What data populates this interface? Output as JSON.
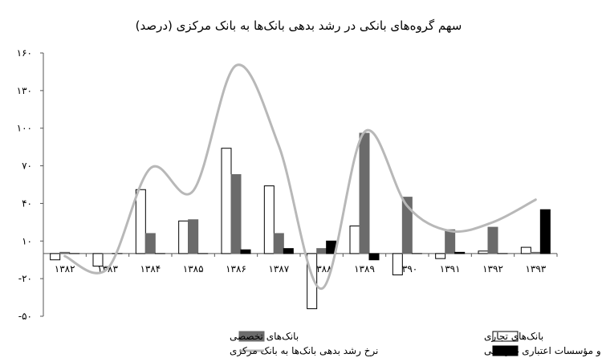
{
  "chart_data": {
    "type": "bar",
    "title": "سهم گروه‌های بانکی در رشد بدهی بانک‌ها به بانک مرکزی (درصد)",
    "categories": [
      "۱۳۸۲",
      "۱۳۸۳",
      "۱۳۸۴",
      "۱۳۸۵",
      "۱۳۸۶",
      "۱۳۸۷",
      "۱۳۸۸",
      "۱۳۸۹",
      "۱۳۹۰",
      "۱۳۹۱",
      "۱۳۹۲",
      "۱۳۹۳"
    ],
    "y_tick_labels": [
      "۱۶۰",
      "۱۳۰",
      "۱۰۰",
      "۷۰",
      "۴۰",
      "۱۰",
      "-۲۰",
      "-۵۰"
    ],
    "y_tick_values": [
      160,
      130,
      100,
      70,
      40,
      10,
      -20,
      -50
    ],
    "ylim": [
      -50,
      160
    ],
    "series": [
      {
        "name": "بانک‌های تجاری",
        "kind": "bar",
        "color": "#ffffff",
        "values": [
          -5,
          -10,
          51,
          26,
          84,
          54,
          -44,
          22,
          -17,
          -4,
          2,
          5
        ]
      },
      {
        "name": "بانک‌های تخصصی",
        "kind": "bar",
        "color": "#6b6b6b",
        "values": [
          1,
          0,
          16,
          27,
          63,
          16,
          4,
          96,
          45,
          19,
          21,
          1
        ]
      },
      {
        "name": "بانک‌های غیردولتی و مؤسسات اعتباری غیربانکی",
        "kind": "bar",
        "color": "#000000",
        "values": [
          0,
          0,
          0,
          0,
          3,
          4,
          10,
          -5,
          0,
          1,
          0,
          35
        ]
      },
      {
        "name": "نرخ رشد بدهی بانک‌ها به بانک مرکزی",
        "kind": "line",
        "color": "#b8b8b8",
        "values": [
          -2,
          -12,
          68,
          50,
          150,
          86,
          -28,
          97,
          38,
          18,
          25,
          43
        ]
      }
    ],
    "grid": false,
    "legend_position": "bottom"
  }
}
